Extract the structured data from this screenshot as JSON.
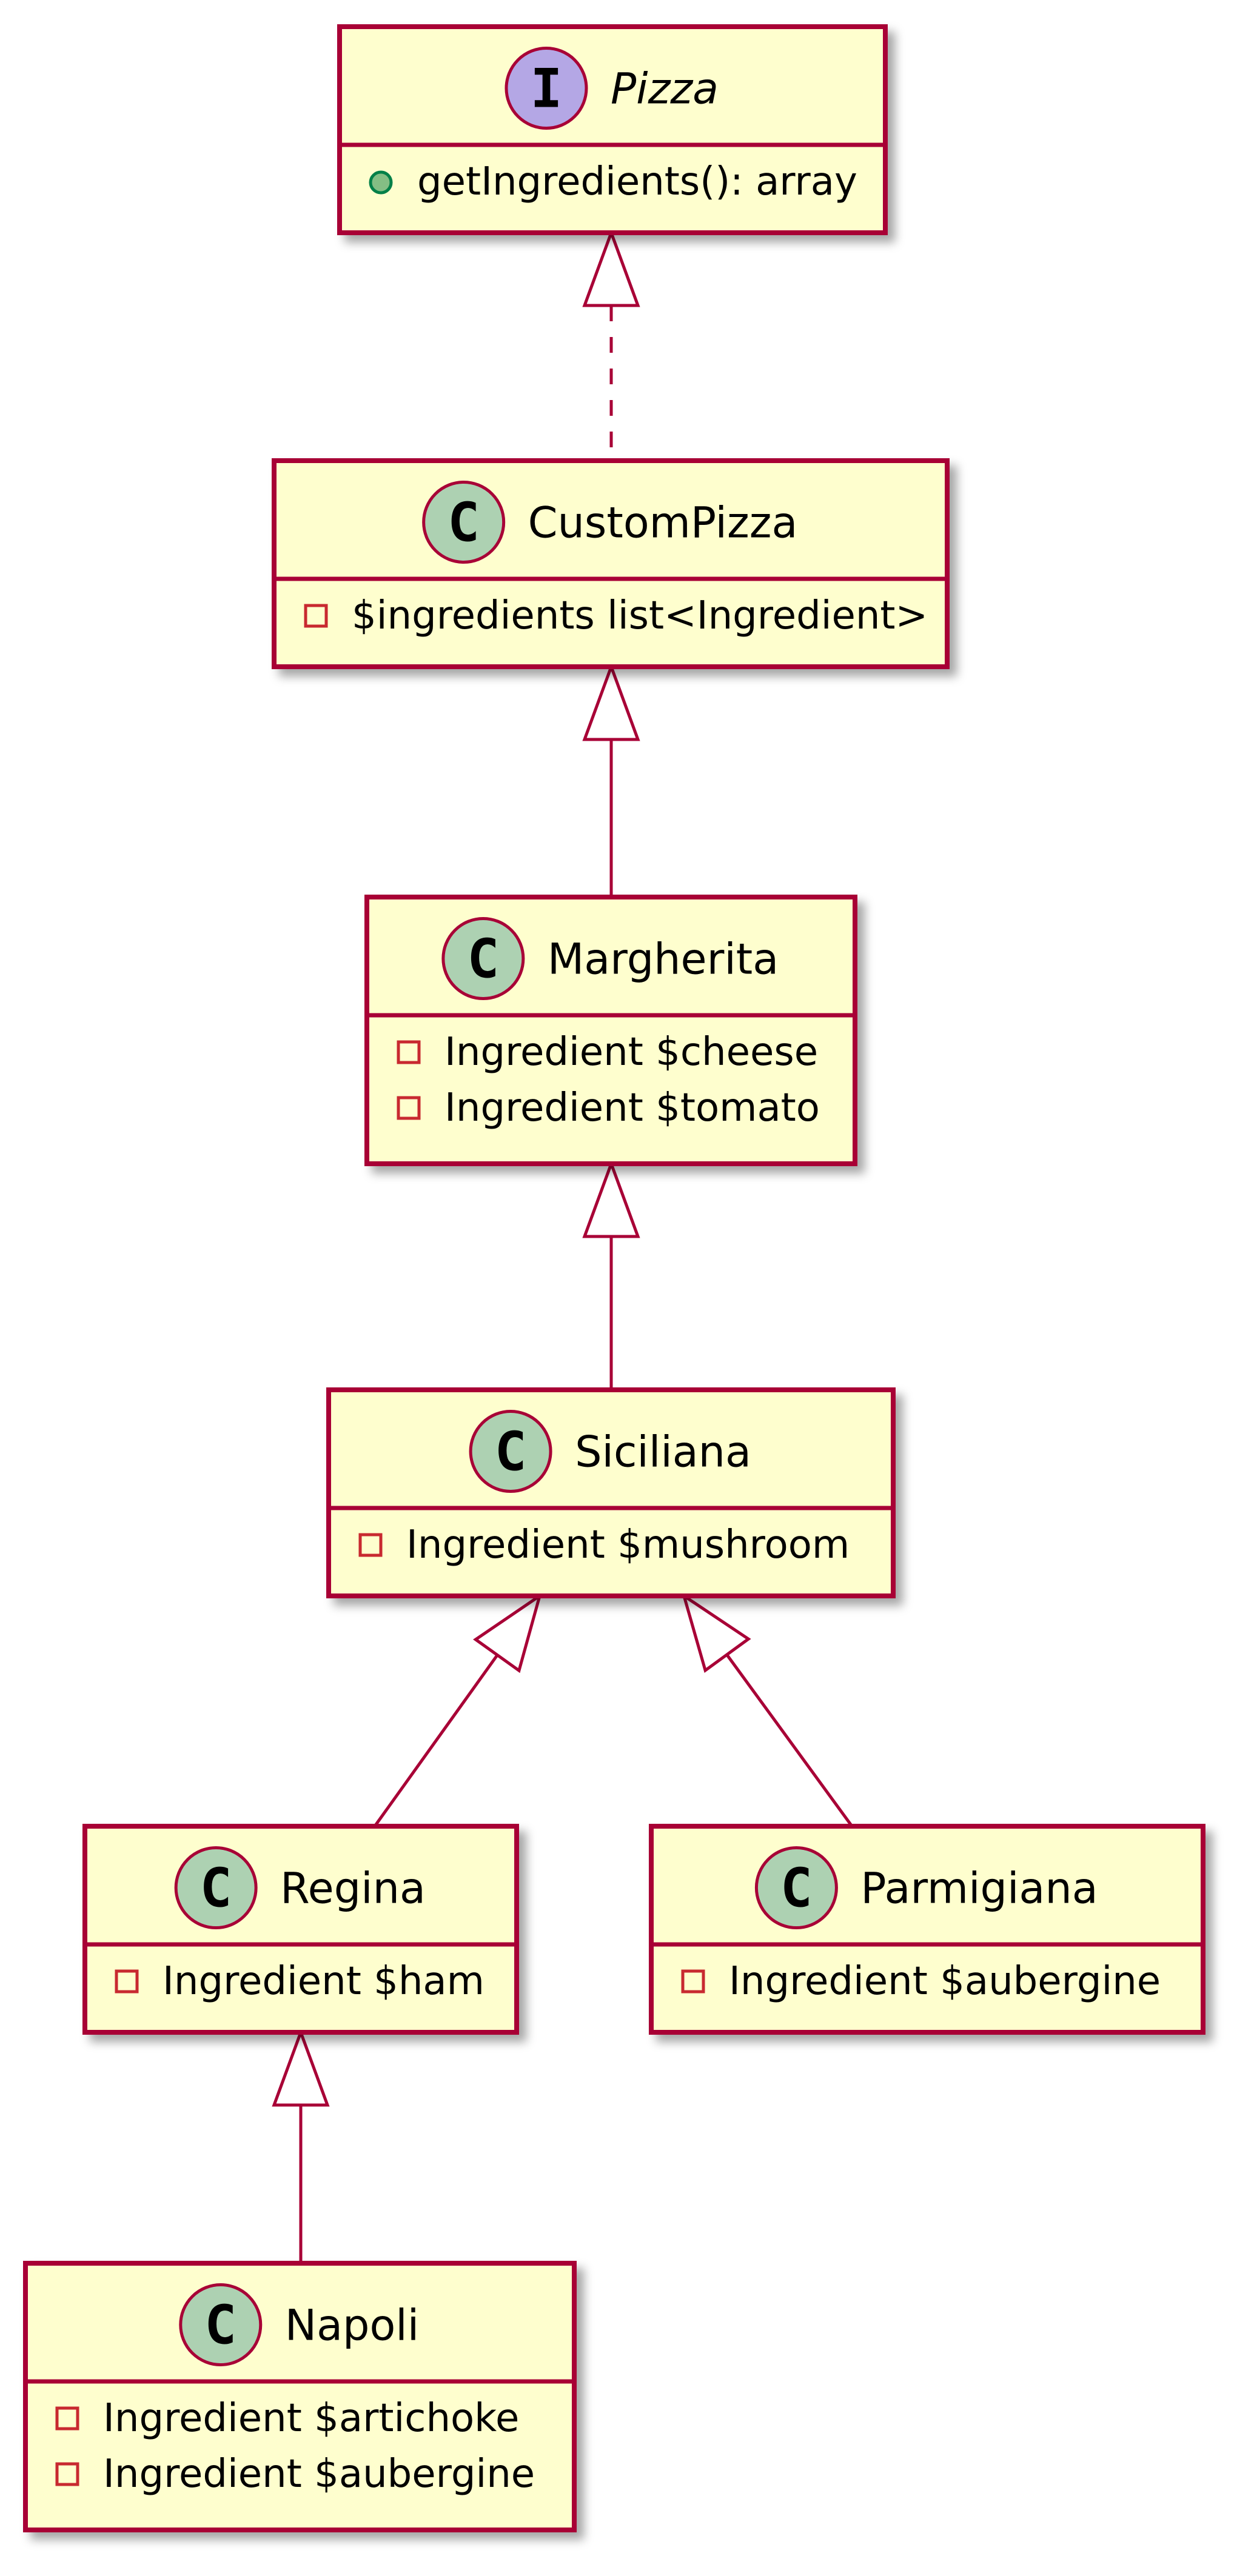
{
  "classes": [
    {
      "id": "pizza",
      "kind": "interface",
      "badge": "I",
      "badge_color": "#B4A7E5",
      "name": "Pizza",
      "members": [
        {
          "visibility": "public",
          "text": "getIngredients(): array"
        }
      ]
    },
    {
      "id": "custompizza",
      "kind": "class",
      "badge": "C",
      "badge_color": "#ADD1B2",
      "name": "CustomPizza",
      "members": [
        {
          "visibility": "private",
          "text": "$ingredients list<Ingredient>"
        }
      ]
    },
    {
      "id": "margherita",
      "kind": "class",
      "badge": "C",
      "badge_color": "#ADD1B2",
      "name": "Margherita",
      "members": [
        {
          "visibility": "private",
          "text": "Ingredient $cheese"
        },
        {
          "visibility": "private",
          "text": "Ingredient $tomato"
        }
      ]
    },
    {
      "id": "siciliana",
      "kind": "class",
      "badge": "C",
      "badge_color": "#ADD1B2",
      "name": "Siciliana",
      "members": [
        {
          "visibility": "private",
          "text": "Ingredient $mushroom"
        }
      ]
    },
    {
      "id": "regina",
      "kind": "class",
      "badge": "C",
      "badge_color": "#ADD1B2",
      "name": "Regina",
      "members": [
        {
          "visibility": "private",
          "text": "Ingredient $ham"
        }
      ]
    },
    {
      "id": "parmigiana",
      "kind": "class",
      "badge": "C",
      "badge_color": "#ADD1B2",
      "name": "Parmigiana",
      "members": [
        {
          "visibility": "private",
          "text": "Ingredient $aubergine"
        }
      ]
    },
    {
      "id": "napoli",
      "kind": "class",
      "badge": "C",
      "badge_color": "#ADD1B2",
      "name": "Napoli",
      "members": [
        {
          "visibility": "private",
          "text": "Ingredient $artichoke"
        },
        {
          "visibility": "private",
          "text": "Ingredient $aubergine"
        }
      ]
    }
  ],
  "relations": [
    {
      "from": "custompizza",
      "to": "pizza",
      "type": "realization"
    },
    {
      "from": "margherita",
      "to": "custompizza",
      "type": "generalization"
    },
    {
      "from": "siciliana",
      "to": "margherita",
      "type": "generalization"
    },
    {
      "from": "regina",
      "to": "siciliana",
      "type": "generalization"
    },
    {
      "from": "parmigiana",
      "to": "siciliana",
      "type": "generalization"
    },
    {
      "from": "napoli",
      "to": "regina",
      "type": "generalization"
    }
  ],
  "colors": {
    "border": "#A80036",
    "fill": "#FEFECE",
    "private_marker": "#C82930",
    "public_marker": "#84BE84"
  }
}
